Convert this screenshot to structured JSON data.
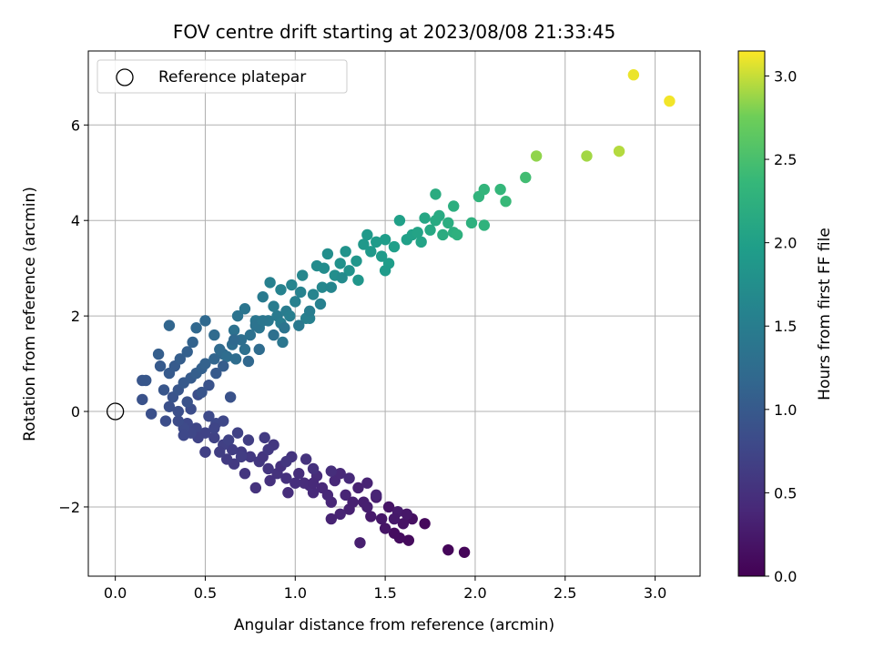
{
  "chart_data": {
    "type": "scatter",
    "title": "FOV centre drift starting at 2023/08/08 21:33:45",
    "xlabel": "Angular distance from reference (arcmin)",
    "ylabel": "Rotation from reference (arcmin)",
    "xlim": [
      -0.15,
      3.25
    ],
    "ylim": [
      -3.45,
      7.55
    ],
    "x_ticks": [
      0.0,
      0.5,
      1.0,
      1.5,
      2.0,
      2.5,
      3.0
    ],
    "x_tick_labels": [
      "0.0",
      "0.5",
      "1.0",
      "1.5",
      "2.0",
      "2.5",
      "3.0"
    ],
    "y_ticks": [
      -2,
      0,
      2,
      4,
      6
    ],
    "y_tick_labels": [
      "−2",
      "0",
      "2",
      "4",
      "6"
    ],
    "grid": true,
    "legend": {
      "position": "top-left",
      "entries": [
        {
          "label": "Reference platepar",
          "marker": "open-circle",
          "x": 0.0,
          "y": 0.0
        }
      ]
    },
    "colorbar": {
      "label": "Hours from first FF file",
      "colormap": "viridis",
      "range": [
        0.0,
        3.15
      ],
      "ticks": [
        0.0,
        0.5,
        1.0,
        1.5,
        2.0,
        2.5,
        3.0
      ],
      "tick_labels": [
        "0.0",
        "0.5",
        "1.0",
        "1.5",
        "2.0",
        "2.5",
        "3.0"
      ]
    },
    "series": [
      {
        "name": "",
        "columns": [
          "x",
          "y",
          "hours"
        ],
        "points": [
          [
            1.94,
            -2.95,
            0.05
          ],
          [
            1.85,
            -2.9,
            0.05
          ],
          [
            1.72,
            -2.35,
            0.08
          ],
          [
            1.63,
            -2.7,
            0.1
          ],
          [
            1.58,
            -2.65,
            0.12
          ],
          [
            1.55,
            -2.55,
            0.12
          ],
          [
            1.65,
            -2.25,
            0.15
          ],
          [
            1.6,
            -2.35,
            0.18
          ],
          [
            1.52,
            -2.0,
            0.2
          ],
          [
            1.48,
            -2.25,
            0.22
          ],
          [
            1.42,
            -2.2,
            0.25
          ],
          [
            1.36,
            -2.75,
            0.3
          ],
          [
            1.45,
            -1.8,
            0.28
          ],
          [
            1.38,
            -1.9,
            0.3
          ],
          [
            1.3,
            -2.05,
            0.32
          ],
          [
            1.25,
            -2.15,
            0.35
          ],
          [
            1.2,
            -1.9,
            0.38
          ],
          [
            1.15,
            -1.6,
            0.4
          ],
          [
            1.1,
            -1.7,
            0.42
          ],
          [
            1.05,
            -1.5,
            0.45
          ],
          [
            1.0,
            -1.5,
            0.48
          ],
          [
            0.95,
            -1.4,
            0.5
          ],
          [
            0.9,
            -1.3,
            0.52
          ],
          [
            0.85,
            -1.2,
            0.55
          ],
          [
            0.8,
            -1.05,
            0.58
          ],
          [
            0.75,
            -0.95,
            0.6
          ],
          [
            0.7,
            -0.85,
            0.62
          ],
          [
            0.65,
            -0.8,
            0.65
          ],
          [
            0.6,
            -0.7,
            0.68
          ],
          [
            0.55,
            -0.55,
            0.7
          ],
          [
            0.5,
            -0.45,
            0.72
          ],
          [
            0.45,
            -0.35,
            0.75
          ],
          [
            0.4,
            -0.25,
            0.78
          ],
          [
            1.35,
            -1.6,
            0.33
          ],
          [
            1.28,
            -1.75,
            0.36
          ],
          [
            1.22,
            -1.45,
            0.4
          ],
          [
            1.12,
            -1.35,
            0.44
          ],
          [
            1.02,
            -1.3,
            0.46
          ],
          [
            0.92,
            -1.15,
            0.5
          ],
          [
            0.82,
            -0.95,
            0.56
          ],
          [
            0.78,
            -1.6,
            0.52
          ],
          [
            0.72,
            -1.3,
            0.56
          ],
          [
            0.66,
            -1.1,
            0.6
          ],
          [
            0.62,
            -1.0,
            0.62
          ],
          [
            0.58,
            -0.85,
            0.66
          ],
          [
            0.5,
            -0.85,
            0.7
          ],
          [
            0.46,
            -0.55,
            0.72
          ],
          [
            0.42,
            -0.45,
            0.76
          ],
          [
            0.38,
            -0.35,
            0.8
          ],
          [
            0.35,
            -0.2,
            0.82
          ],
          [
            0.96,
            -1.7,
            0.46
          ],
          [
            1.08,
            -1.55,
            0.44
          ],
          [
            1.18,
            -1.75,
            0.4
          ],
          [
            0.88,
            -0.7,
            0.58
          ],
          [
            0.83,
            -0.55,
            0.62
          ],
          [
            0.74,
            -0.6,
            0.66
          ],
          [
            0.68,
            -0.45,
            0.7
          ],
          [
            0.64,
            0.3,
            0.9
          ],
          [
            0.56,
            -0.25,
            0.78
          ],
          [
            0.52,
            -0.1,
            0.8
          ],
          [
            1.06,
            -1.0,
            0.52
          ],
          [
            0.98,
            -0.95,
            0.54
          ],
          [
            1.4,
            -1.5,
            0.35
          ],
          [
            1.25,
            -1.3,
            0.4
          ],
          [
            0.86,
            -1.45,
            0.5
          ],
          [
            1.5,
            -2.45,
            0.2
          ],
          [
            0.28,
            -0.2,
            0.85
          ],
          [
            0.3,
            0.1,
            0.88
          ],
          [
            0.32,
            0.3,
            0.92
          ],
          [
            0.35,
            0.45,
            0.95
          ],
          [
            0.38,
            0.6,
            1.0
          ],
          [
            0.42,
            0.7,
            1.02
          ],
          [
            0.45,
            0.8,
            1.05
          ],
          [
            0.48,
            0.9,
            1.08
          ],
          [
            0.5,
            1.0,
            1.1
          ],
          [
            0.55,
            1.1,
            1.15
          ],
          [
            0.6,
            1.2,
            1.2
          ],
          [
            0.65,
            1.4,
            1.25
          ],
          [
            0.7,
            1.5,
            1.28
          ],
          [
            0.75,
            1.6,
            1.32
          ],
          [
            0.8,
            1.75,
            1.38
          ],
          [
            0.85,
            1.9,
            1.42
          ],
          [
            0.9,
            2.0,
            1.45
          ],
          [
            0.95,
            2.1,
            1.48
          ],
          [
            0.15,
            0.25,
            0.9
          ],
          [
            0.15,
            0.65,
            0.95
          ],
          [
            0.17,
            0.65,
            0.96
          ],
          [
            0.2,
            -0.05,
            0.88
          ],
          [
            0.27,
            0.45,
            0.95
          ],
          [
            0.25,
            0.95,
            1.0
          ],
          [
            0.24,
            1.2,
            1.05
          ],
          [
            0.3,
            0.8,
            1.0
          ],
          [
            0.33,
            0.95,
            1.02
          ],
          [
            0.36,
            1.1,
            1.05
          ],
          [
            0.4,
            1.25,
            1.08
          ],
          [
            0.43,
            1.45,
            1.12
          ],
          [
            0.3,
            1.8,
            1.15
          ],
          [
            0.45,
            1.75,
            1.18
          ],
          [
            0.5,
            1.9,
            1.2
          ],
          [
            0.55,
            1.6,
            1.22
          ],
          [
            0.58,
            1.3,
            1.22
          ],
          [
            0.62,
            1.15,
            1.25
          ],
          [
            0.67,
            1.1,
            1.25
          ],
          [
            0.72,
            1.3,
            1.3
          ],
          [
            0.66,
            1.7,
            1.32
          ],
          [
            0.68,
            2.0,
            1.35
          ],
          [
            0.72,
            2.15,
            1.38
          ],
          [
            0.78,
            1.9,
            1.4
          ],
          [
            0.82,
            2.4,
            1.45
          ],
          [
            0.88,
            2.2,
            1.48
          ],
          [
            0.92,
            1.85,
            1.48
          ],
          [
            0.97,
            2.0,
            1.52
          ],
          [
            1.0,
            2.3,
            1.55
          ],
          [
            1.03,
            2.5,
            1.58
          ],
          [
            1.06,
            1.95,
            1.55
          ],
          [
            1.1,
            2.45,
            1.6
          ],
          [
            1.15,
            2.6,
            1.65
          ],
          [
            0.86,
            2.7,
            1.55
          ],
          [
            0.92,
            2.55,
            1.58
          ],
          [
            0.98,
            2.65,
            1.6
          ],
          [
            1.04,
            2.85,
            1.65
          ],
          [
            1.12,
            3.05,
            1.7
          ],
          [
            1.16,
            3.0,
            1.72
          ],
          [
            1.18,
            3.3,
            1.75
          ],
          [
            1.22,
            2.85,
            1.75
          ],
          [
            1.25,
            3.1,
            1.78
          ],
          [
            1.3,
            2.95,
            1.8
          ],
          [
            1.28,
            3.35,
            1.82
          ],
          [
            1.34,
            3.15,
            1.85
          ],
          [
            1.38,
            3.5,
            1.88
          ],
          [
            1.4,
            3.7,
            1.9
          ],
          [
            1.42,
            3.35,
            1.9
          ],
          [
            1.45,
            3.55,
            1.92
          ],
          [
            1.48,
            3.25,
            1.92
          ],
          [
            1.5,
            3.6,
            1.95
          ],
          [
            1.52,
            3.1,
            1.95
          ],
          [
            1.55,
            3.45,
            1.98
          ],
          [
            1.58,
            4.0,
            2.0
          ],
          [
            1.5,
            2.95,
            1.92
          ],
          [
            1.35,
            2.75,
            1.85
          ],
          [
            0.93,
            1.45,
            1.4
          ],
          [
            0.78,
            1.8,
            1.35
          ],
          [
            0.82,
            1.9,
            1.4
          ],
          [
            1.08,
            1.95,
            1.55
          ],
          [
            1.62,
            3.6,
            2.0
          ],
          [
            1.65,
            3.7,
            2.02
          ],
          [
            1.68,
            3.75,
            2.05
          ],
          [
            1.7,
            3.55,
            2.05
          ],
          [
            1.72,
            4.05,
            2.1
          ],
          [
            1.75,
            3.8,
            2.12
          ],
          [
            1.78,
            4.0,
            2.15
          ],
          [
            1.8,
            4.1,
            2.15
          ],
          [
            1.82,
            3.7,
            2.18
          ],
          [
            1.85,
            3.95,
            2.2
          ],
          [
            1.88,
            3.75,
            2.22
          ],
          [
            1.9,
            3.7,
            2.25
          ],
          [
            1.78,
            4.55,
            2.18
          ],
          [
            1.88,
            4.3,
            2.22
          ],
          [
            1.98,
            3.95,
            2.25
          ],
          [
            2.05,
            3.9,
            2.28
          ],
          [
            2.02,
            4.5,
            2.3
          ],
          [
            2.05,
            4.65,
            2.32
          ],
          [
            2.14,
            4.65,
            2.35
          ],
          [
            2.17,
            4.4,
            2.38
          ],
          [
            2.28,
            4.9,
            2.45
          ],
          [
            2.34,
            5.35,
            2.85
          ],
          [
            2.62,
            5.35,
            2.9
          ],
          [
            2.8,
            5.45,
            2.95
          ],
          [
            2.88,
            7.05,
            3.1
          ],
          [
            3.08,
            6.5,
            3.12
          ],
          [
            0.46,
            0.35,
            0.85
          ],
          [
            0.52,
            0.55,
            0.92
          ],
          [
            0.42,
            0.05,
            0.84
          ],
          [
            0.38,
            -0.5,
            0.78
          ],
          [
            0.55,
            -0.35,
            0.74
          ],
          [
            0.6,
            -0.2,
            0.76
          ],
          [
            0.5,
            -0.85,
            0.68
          ],
          [
            0.63,
            -0.6,
            0.7
          ],
          [
            0.7,
            -0.95,
            0.64
          ],
          [
            0.85,
            -0.8,
            0.6
          ],
          [
            0.95,
            -1.05,
            0.56
          ],
          [
            1.1,
            -1.2,
            0.5
          ],
          [
            1.2,
            -1.25,
            0.46
          ],
          [
            1.3,
            -1.4,
            0.42
          ],
          [
            1.45,
            -1.75,
            0.36
          ],
          [
            1.57,
            -2.1,
            0.26
          ],
          [
            1.62,
            -2.15,
            0.22
          ],
          [
            1.55,
            -2.25,
            0.24
          ],
          [
            1.4,
            -2.0,
            0.3
          ],
          [
            1.32,
            -1.9,
            0.32
          ],
          [
            1.2,
            -2.25,
            0.34
          ],
          [
            1.1,
            -1.5,
            0.42
          ],
          [
            0.35,
            0.0,
            0.86
          ],
          [
            0.4,
            0.2,
            0.9
          ],
          [
            0.48,
            0.4,
            0.94
          ],
          [
            0.56,
            0.8,
            1.0
          ],
          [
            0.6,
            0.95,
            1.04
          ],
          [
            0.66,
            1.5,
            1.2
          ],
          [
            0.74,
            1.05,
            1.18
          ],
          [
            0.8,
            1.3,
            1.24
          ],
          [
            0.88,
            1.6,
            1.3
          ],
          [
            0.94,
            1.75,
            1.36
          ],
          [
            1.02,
            1.8,
            1.44
          ],
          [
            1.08,
            2.1,
            1.5
          ],
          [
            1.14,
            2.25,
            1.54
          ],
          [
            1.2,
            2.6,
            1.62
          ],
          [
            1.26,
            2.8,
            1.7
          ]
        ]
      }
    ]
  }
}
